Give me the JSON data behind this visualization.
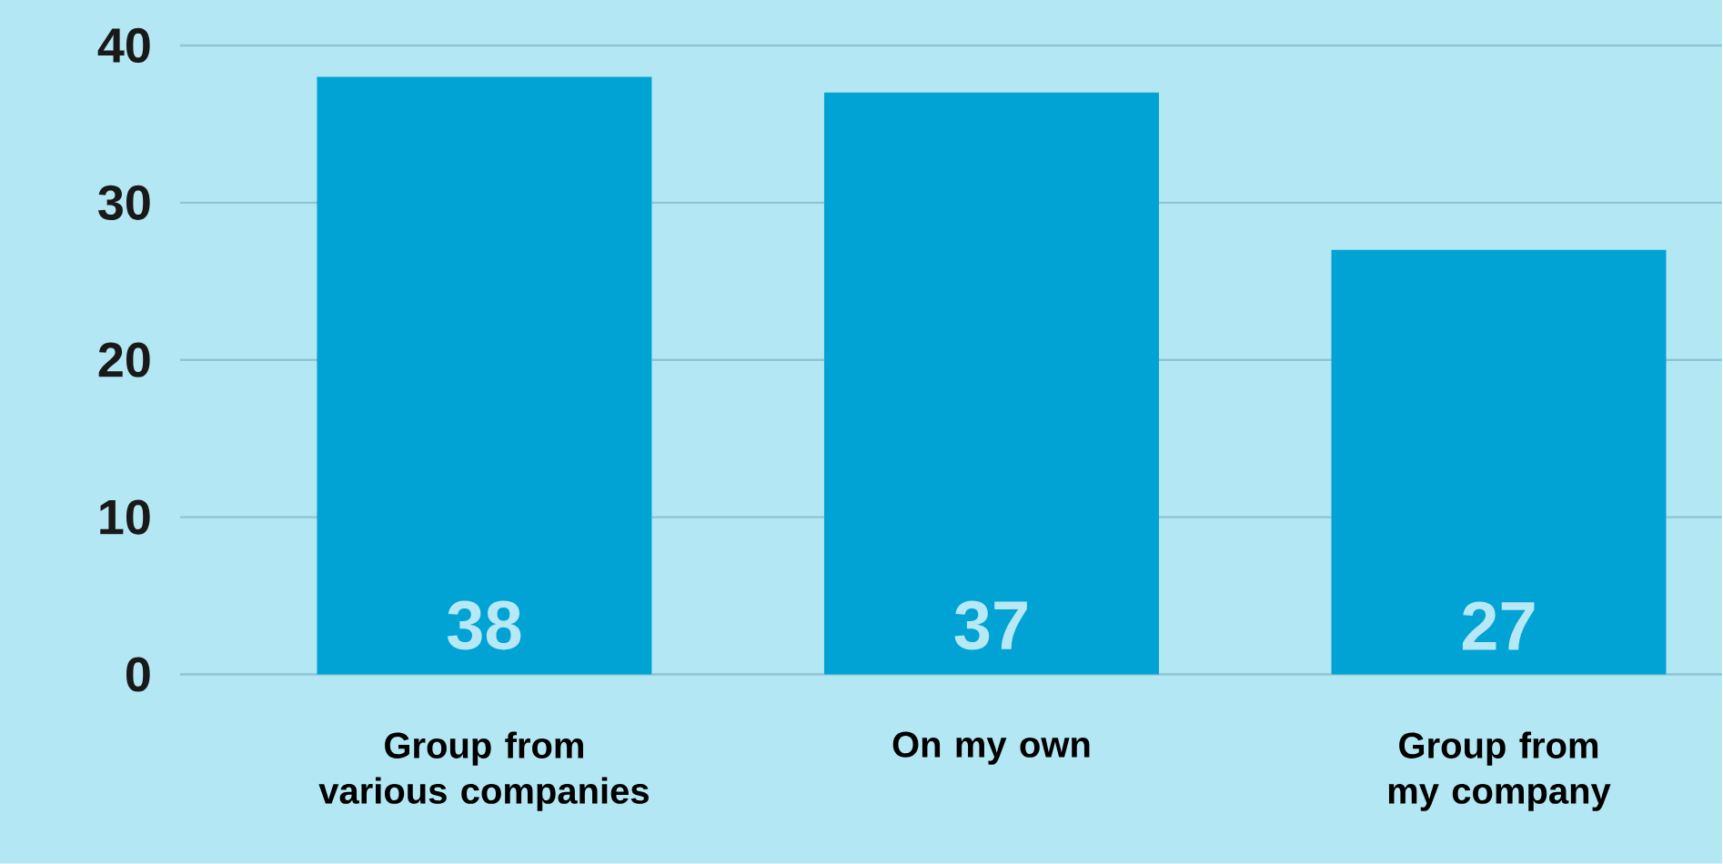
{
  "chart_data": {
    "type": "bar",
    "categories": [
      "Group from various companies",
      "On my own",
      "Group from my company"
    ],
    "values": [
      38,
      37,
      27
    ],
    "color": "#00a3d3",
    "ylim": [
      0,
      40
    ],
    "yticks": [
      0,
      10,
      20,
      30,
      40
    ],
    "grid": "y",
    "data_labels": true
  }
}
